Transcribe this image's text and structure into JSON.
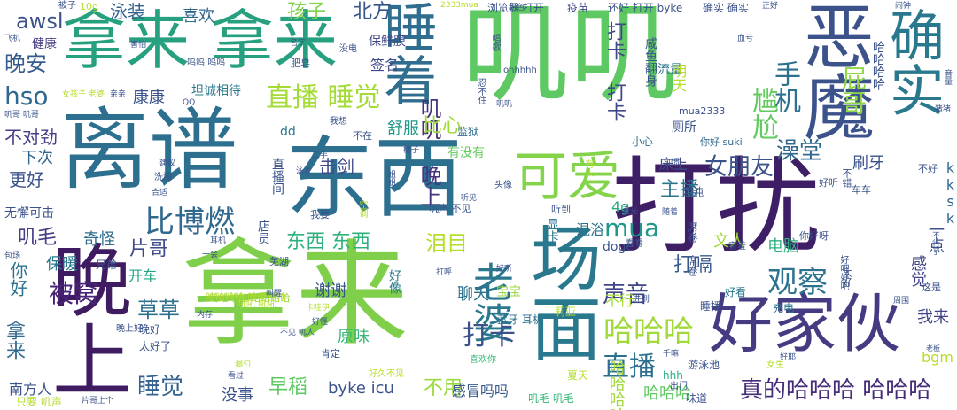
{
  "words": [
    {
      "text": "打扰",
      "color": "#3e1f66"
    },
    {
      "text": "拿来",
      "color": "#7fcf4a"
    },
    {
      "text": "离谱",
      "color": "#2d6f8e"
    },
    {
      "text": "东西",
      "color": "#2d6f8e"
    },
    {
      "text": "叽叽",
      "color": "#5ec962"
    },
    {
      "text": "拿来 拿来",
      "color": "#27a07f"
    },
    {
      "text": "好家伙",
      "color": "#453b82"
    },
    {
      "text": "恶魔",
      "color": "#3b528b"
    },
    {
      "text": "确实",
      "color": "#2a788e"
    },
    {
      "text": "场面",
      "color": "#2a788e"
    },
    {
      "text": "晚上",
      "color": "#3f1c62"
    },
    {
      "text": "睡着",
      "color": "#2f6e8e"
    },
    {
      "text": "可爱",
      "color": "#84d44b"
    },
    {
      "text": "直播 睡觉",
      "color": "#a5db36"
    },
    {
      "text": "比博燃",
      "color": "#31688e"
    },
    {
      "text": "哈哈哈",
      "color": "#9fda3a"
    },
    {
      "text": "真的哈哈哈 哈哈哈",
      "color": "#472c7a"
    },
    {
      "text": "女朋友",
      "color": "#3b528b"
    },
    {
      "text": "老婆",
      "color": "#2a788e"
    },
    {
      "text": "mua",
      "color": "#1f988b"
    },
    {
      "text": "直播",
      "color": "#2d708e"
    },
    {
      "text": "打卡",
      "color": "#3b528b"
    },
    {
      "text": "观察",
      "color": "#2c728e"
    },
    {
      "text": "声音",
      "color": "#414487"
    },
    {
      "text": "被窝",
      "color": "#482576"
    },
    {
      "text": "睡觉",
      "color": "#34618d"
    },
    {
      "text": "东西 东西",
      "color": "#2db27d"
    },
    {
      "text": "泪目",
      "color": "#b5de2b"
    },
    {
      "text": "打嗝",
      "color": "#38598c"
    },
    {
      "text": "手机",
      "color": "#2c728e"
    },
    {
      "text": "尴尬",
      "color": "#62cb5f"
    },
    {
      "text": "屁哥",
      "color": "#8fd744"
    },
    {
      "text": "叽叽 晚上",
      "color": "#46337f"
    },
    {
      "text": "打卡 打卡",
      "color": "#3f4889"
    },
    {
      "text": "澡堂",
      "color": "#31688e"
    },
    {
      "text": "主播",
      "color": "#2c738e"
    },
    {
      "text": "早稻",
      "color": "#5ec962"
    },
    {
      "text": "晚安",
      "color": "#365c8d"
    },
    {
      "text": "hso",
      "color": "#31688e"
    },
    {
      "text": "awsl",
      "color": "#3b528b"
    },
    {
      "text": "不用",
      "color": "#9bd93c"
    },
    {
      "text": "孩子",
      "color": "#81d34d"
    },
    {
      "text": "北方",
      "color": "#39568c"
    },
    {
      "text": "泳装",
      "color": "#34608d"
    },
    {
      "text": "喜欢",
      "color": "#31688e"
    },
    {
      "text": "康康",
      "color": "#3b528b"
    },
    {
      "text": "不对劲",
      "color": "#433e85"
    },
    {
      "text": "下次",
      "color": "#31688e"
    },
    {
      "text": "更好",
      "color": "#3b528b"
    },
    {
      "text": "叽毛",
      "color": "#433e85"
    },
    {
      "text": "奇怪",
      "color": "#2e6d8e"
    },
    {
      "text": "保暖",
      "color": "#2a788e"
    },
    {
      "text": "开车",
      "color": "#22a785"
    },
    {
      "text": "片哥",
      "color": "#3e4989"
    },
    {
      "text": "草草",
      "color": "#2d708e"
    },
    {
      "text": "拿来",
      "color": "#31688e"
    },
    {
      "text": "你好",
      "color": "#2c728e"
    },
    {
      "text": "谢谢",
      "color": "#39568c"
    },
    {
      "text": "聊天",
      "color": "#2c728e"
    },
    {
      "text": "原味",
      "color": "#35b779"
    },
    {
      "text": "舒服",
      "color": "#1f9a8a"
    },
    {
      "text": "比心",
      "color": "#a0da39"
    },
    {
      "text": "击剑",
      "color": "#3e4a89"
    },
    {
      "text": "byke icu",
      "color": "#3b528b"
    },
    {
      "text": "感冒吗吗",
      "color": "#38598c"
    },
    {
      "text": "哈哈哈哈",
      "color": "#a0da39"
    },
    {
      "text": "哈哈哈",
      "color": "#5ec962"
    },
    {
      "text": "一点",
      "color": "#3b528b"
    },
    {
      "text": "感觉",
      "color": "#414487"
    },
    {
      "text": "kksk",
      "color": "#31688e"
    },
    {
      "text": "刷牙",
      "color": "#3b528b"
    },
    {
      "text": "床上",
      "color": "#3e4989"
    },
    {
      "text": "电脑",
      "color": "#2db27d"
    },
    {
      "text": "文人",
      "color": "#a0da39"
    },
    {
      "text": "4g",
      "color": "#27ad81"
    },
    {
      "text": "bgm",
      "color": "#b5de2b"
    },
    {
      "text": "我来",
      "color": "#414487"
    },
    {
      "text": "没事",
      "color": "#3b528b"
    },
    {
      "text": "南方人",
      "color": "#3b528b"
    },
    {
      "text": "签名",
      "color": "#3e4989"
    },
    {
      "text": "保鲜膜",
      "color": "#414487"
    },
    {
      "text": "坦诚相待",
      "color": "#2a788e"
    },
    {
      "text": "有没有",
      "color": "#65cb5e"
    },
    {
      "text": "监狱",
      "color": "#2e6e8e"
    },
    {
      "text": "健康",
      "color": "#433e85"
    },
    {
      "text": "流量",
      "color": "#2c728e"
    },
    {
      "text": "厕所",
      "color": "#3b528b"
    },
    {
      "text": "混浴",
      "color": "#2c728e"
    },
    {
      "text": "doge",
      "color": "#3b528b"
    },
    {
      "text": "宝宝",
      "color": "#9bd93c"
    },
    {
      "text": "不行",
      "color": "#a5db36"
    },
    {
      "text": "好看",
      "color": "#2a788e"
    },
    {
      "text": "睡播",
      "color": "#3b528b"
    },
    {
      "text": "充电",
      "color": "#2a788e"
    },
    {
      "text": "游泳池",
      "color": "#3b528b"
    },
    {
      "text": "确实 确实",
      "color": "#3b528b"
    },
    {
      "text": "还好 打开 byke",
      "color": "#3b528b"
    },
    {
      "text": "浏览器 打开",
      "color": "#3b528b"
    },
    {
      "text": "疫苗",
      "color": "#414487"
    },
    {
      "text": "小心",
      "color": "#2c728e"
    },
    {
      "text": "明天",
      "color": "#b5de2b"
    },
    {
      "text": "mua2333",
      "color": "#3b528b"
    },
    {
      "text": "你好 suki",
      "color": "#31688e"
    },
    {
      "text": "咸鱼翻身",
      "color": "#3b528b"
    },
    {
      "text": "唱歌",
      "color": "#3b528b"
    },
    {
      "text": "哈哈哈哈",
      "color": "#3b528b"
    },
    {
      "text": "无懈可击",
      "color": "#3b528b"
    },
    {
      "text": "兄弟",
      "color": "#3b528b"
    },
    {
      "text": "晚好",
      "color": "#3b528b"
    },
    {
      "text": "太好了",
      "color": "#3b528b"
    },
    {
      "text": "叽毛 叽毛",
      "color": "#35b779"
    },
    {
      "text": "夏天",
      "color": "#b5de2b"
    },
    {
      "text": "hhh",
      "color": "#27ad81"
    },
    {
      "text": "味道",
      "color": "#3b528b"
    },
    {
      "text": "只要 叽声",
      "color": "#b5de2b"
    },
    {
      "text": "哈哈哈哈 哈哈哈哈",
      "color": "#9bd93c"
    },
    {
      "text": "好像",
      "color": "#2a788e"
    },
    {
      "text": "显卡",
      "color": "#2c728e"
    },
    {
      "text": "店员",
      "color": "#3b528b"
    },
    {
      "text": "直播间",
      "color": "#3b528b"
    },
    {
      "text": "肥皂",
      "color": "#3b528b"
    },
    {
      "text": "我要",
      "color": "#3b528b"
    },
    {
      "text": "洗澡",
      "color": "#3b528b"
    },
    {
      "text": "叽声 不见",
      "color": "#3b528b"
    },
    {
      "text": "我想",
      "color": "#3b528b"
    },
    {
      "text": "不在",
      "color": "#3b528b"
    },
    {
      "text": "dd",
      "color": "#2a788e"
    },
    {
      "text": "肯定",
      "color": "#3b528b"
    },
    {
      "text": "好久不见",
      "color": "#b5de2b"
    },
    {
      "text": "喜欢你",
      "color": "#35b779"
    },
    {
      "text": "晚上好",
      "color": "#3b528b"
    },
    {
      "text": "混沌",
      "color": "#3b528b"
    },
    {
      "text": "席卷 席卷",
      "color": "#3b528b"
    },
    {
      "text": "害羞",
      "color": "#3b528b"
    },
    {
      "text": "你好呀",
      "color": "#3b528b"
    },
    {
      "text": "太好",
      "color": "#3b528b"
    },
    {
      "text": "好听",
      "color": "#3b528b"
    },
    {
      "text": "不好",
      "color": "#3b528b"
    },
    {
      "text": "不错",
      "color": "#3b528b"
    },
    {
      "text": "车车",
      "color": "#3b528b"
    },
    {
      "text": "这是",
      "color": "#3b528b"
    },
    {
      "text": "蓝牙 耳机",
      "color": "#2c728e"
    },
    {
      "text": "莉亚",
      "color": "#b5de2b"
    },
    {
      "text": "出门",
      "color": "#3b528b"
    },
    {
      "text": "女生",
      "color": "#b5de2b"
    },
    {
      "text": "老板",
      "color": "#3b528b"
    },
    {
      "text": "进到",
      "color": "#3b528b"
    },
    {
      "text": "看看",
      "color": "#3b528b"
    },
    {
      "text": "习惯",
      "color": "#3b528b"
    },
    {
      "text": "头像",
      "color": "#3b528b"
    },
    {
      "text": "有人",
      "color": "#b5de2b"
    },
    {
      "text": "听到",
      "color": "#3b528b"
    },
    {
      "text": "空调",
      "color": "#b5de2b"
    },
    {
      "text": "飞机",
      "color": "#3b528b"
    },
    {
      "text": "被子",
      "color": "#3b528b"
    },
    {
      "text": "10g",
      "color": "#b5de2b"
    },
    {
      "text": "2333mua",
      "color": "#b5de2b"
    },
    {
      "text": "粉色",
      "color": "#3b528b"
    },
    {
      "text": "正好",
      "color": "#3b528b"
    },
    {
      "text": "音量",
      "color": "#3b528b"
    },
    {
      "text": "猪猪",
      "color": "#3b528b"
    },
    {
      "text": "一会",
      "color": "#3b528b"
    },
    {
      "text": "打呼",
      "color": "#3b528b"
    },
    {
      "text": "内存",
      "color": "#3b528b"
    },
    {
      "text": "芜湖",
      "color": "#3b528b"
    },
    {
      "text": "吼吼 吼吼",
      "color": "#b5de2b"
    },
    {
      "text": "耳机",
      "color": "#3b528b"
    },
    {
      "text": "包场",
      "color": "#3b528b"
    },
    {
      "text": "建议",
      "color": "#3b528b"
    },
    {
      "text": "合适",
      "color": "#3b528b"
    },
    {
      "text": "亲亲",
      "color": "#3b528b"
    },
    {
      "text": "女孩子 老婆",
      "color": "#b5de2b"
    },
    {
      "text": "呜呜 呜呜",
      "color": "#3b528b"
    },
    {
      "text": "害怕",
      "color": "#3b528b"
    },
    {
      "text": "名字",
      "color": "#3b528b"
    },
    {
      "text": "没电",
      "color": "#3b528b"
    },
    {
      "text": "QQ",
      "color": "#3b528b"
    },
    {
      "text": "姐姐",
      "color": "#3b528b"
    },
    {
      "text": "桃子",
      "color": "#3b528b"
    },
    {
      "text": "二手",
      "color": "#3b528b"
    },
    {
      "text": "忍不住",
      "color": "#3b528b"
    },
    {
      "text": "ohhhhh",
      "color": "#3b528b"
    },
    {
      "text": "看光",
      "color": "#3b528b"
    },
    {
      "text": "片哥上个",
      "color": "#3b528b"
    },
    {
      "text": "看过",
      "color": "#3b528b"
    },
    {
      "text": "漏勺",
      "color": "#b5de2b"
    },
    {
      "text": "不见 叽人",
      "color": "#3b528b"
    },
    {
      "text": "卡哇伊",
      "color": "#b5de2b"
    },
    {
      "text": "好怪",
      "color": "#3b528b"
    },
    {
      "text": "叽哥 叽哥",
      "color": "#3b528b"
    },
    {
      "text": "哈哈哈哈 哈哈哈哈",
      "color": "#b5de2b"
    },
    {
      "text": "泳衣",
      "color": "#3b528b"
    },
    {
      "text": "叫醒",
      "color": "#3b528b"
    },
    {
      "text": "闹钟",
      "color": "#3b528b"
    },
    {
      "text": "血亏",
      "color": "#3b528b"
    },
    {
      "text": "随着",
      "color": "#3b528b"
    },
    {
      "text": "千嘛",
      "color": "#3b528b"
    },
    {
      "text": "不行了",
      "color": "#3b528b"
    },
    {
      "text": "好耶",
      "color": "#3b528b"
    },
    {
      "text": "周围",
      "color": "#3b528b"
    },
    {
      "text": "好听",
      "color": "#3b528b"
    },
    {
      "text": "听见",
      "color": "#3b528b"
    },
    {
      "text": "叽叽",
      "color": "#3b528b"
    },
    {
      "text": "好吧好吧",
      "color": "#3b528b"
    },
    {
      "text": "太妹",
      "color": "#3b528b"
    }
  ]
}
